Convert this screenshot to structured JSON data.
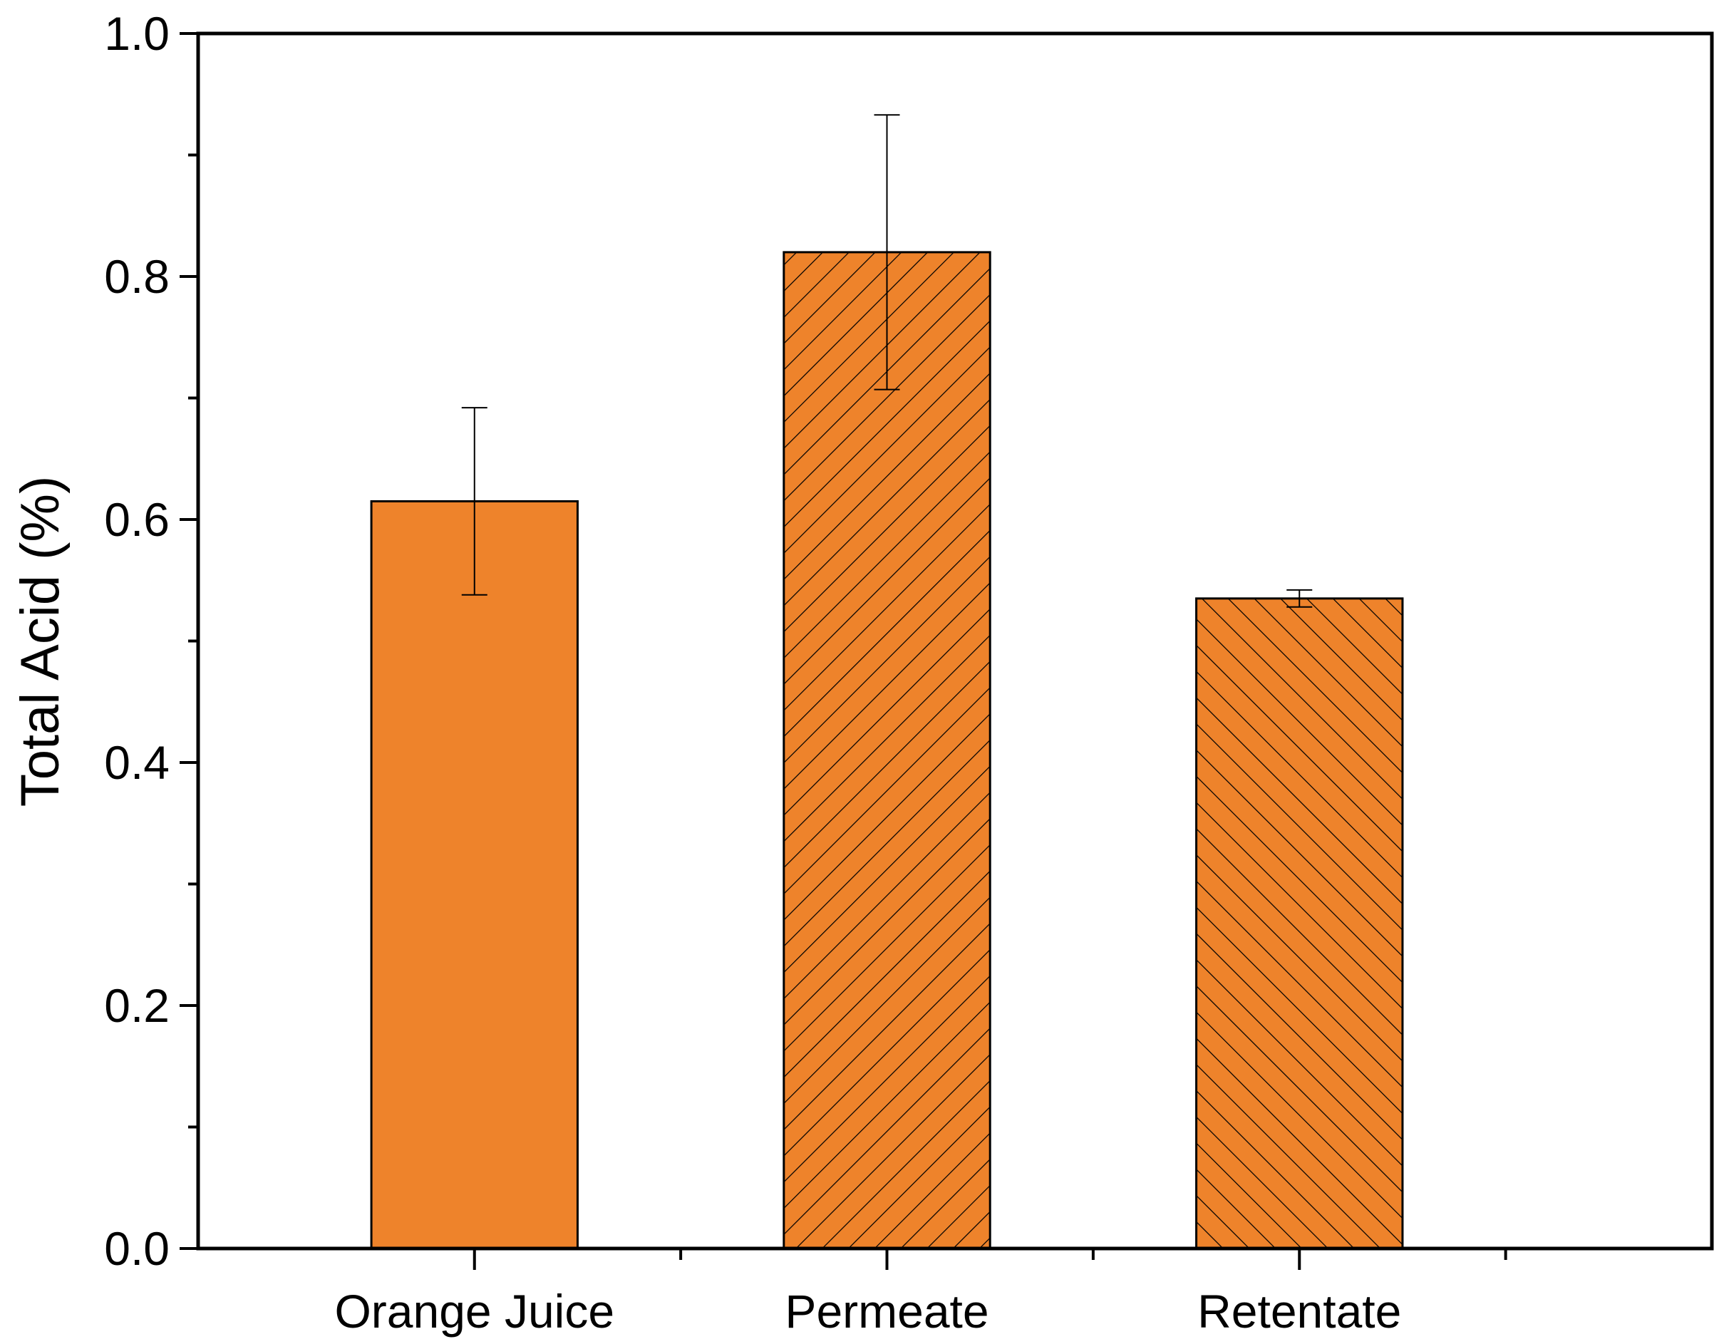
{
  "chart_data": {
    "type": "bar",
    "title": "",
    "xlabel": "",
    "ylabel": "Total Acid (%)",
    "categories": [
      "Orange Juice",
      "Permeate",
      "Retentate"
    ],
    "values": [
      0.615,
      0.82,
      0.535
    ],
    "errors": [
      0.077,
      0.113,
      0.007
    ],
    "patterns": [
      "solid",
      "forward-hatch",
      "back-hatch"
    ],
    "ylim": [
      0,
      1.0
    ],
    "yticks": [
      "0.0",
      "0.2",
      "0.4",
      "0.6",
      "0.8",
      "1.0"
    ],
    "grid": false,
    "legend": "none",
    "colors": {
      "bar_fill": "#EE832B",
      "outline": "#000000",
      "hatch": "#000000"
    }
  }
}
